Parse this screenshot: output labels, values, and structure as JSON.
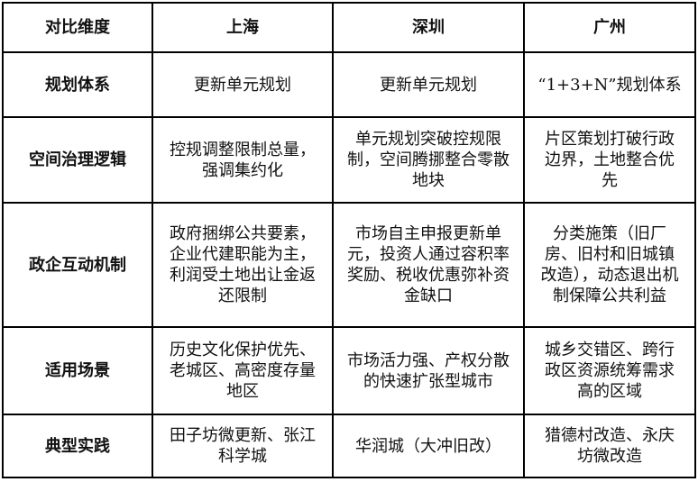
{
  "headers": [
    "对比维度",
    "上海",
    "深圳",
    "广州"
  ],
  "rows": [
    {
      "dimension": "规划体系",
      "shanghai": "更新单元规划",
      "shenzhen": "更新单元规划",
      "guangzhou": "“1+3+N”规划体系"
    },
    {
      "dimension": "空间治理逻辑",
      "shanghai": "控规调整限制总量，强调集约化",
      "shenzhen": "单元规划突破控规限制，空间腾挪整合零散地块",
      "guangzhou": "片区策划打破行政边界，土地整合优先"
    },
    {
      "dimension": "政企互动机制",
      "shanghai": "政府捆绑公共要素，企业代建职能为主，利润受土地出让金返还限制",
      "shenzhen": "市场自主申报更新单元，投资人通过容积率奖励、税收优惠弥补资金缺口",
      "guangzhou": "分类施策（旧厂房、旧村和旧城镇改造），动态退出机制保障公共利益"
    },
    {
      "dimension": "适用场景",
      "shanghai": "历史文化保护优先、老城区、高密度存量地区",
      "shenzhen": "市场活力强、产权分散的快速扩张型城市",
      "guangzhou": "城乡交错区、跨行政区资源统筹需求高的区域"
    },
    {
      "dimension": "典型实践",
      "shanghai": "田子坊微更新、张江科学城",
      "shenzhen": "华润城（大冲旧改）",
      "guangzhou": "猎德村改造、永庆坊微改造"
    }
  ]
}
